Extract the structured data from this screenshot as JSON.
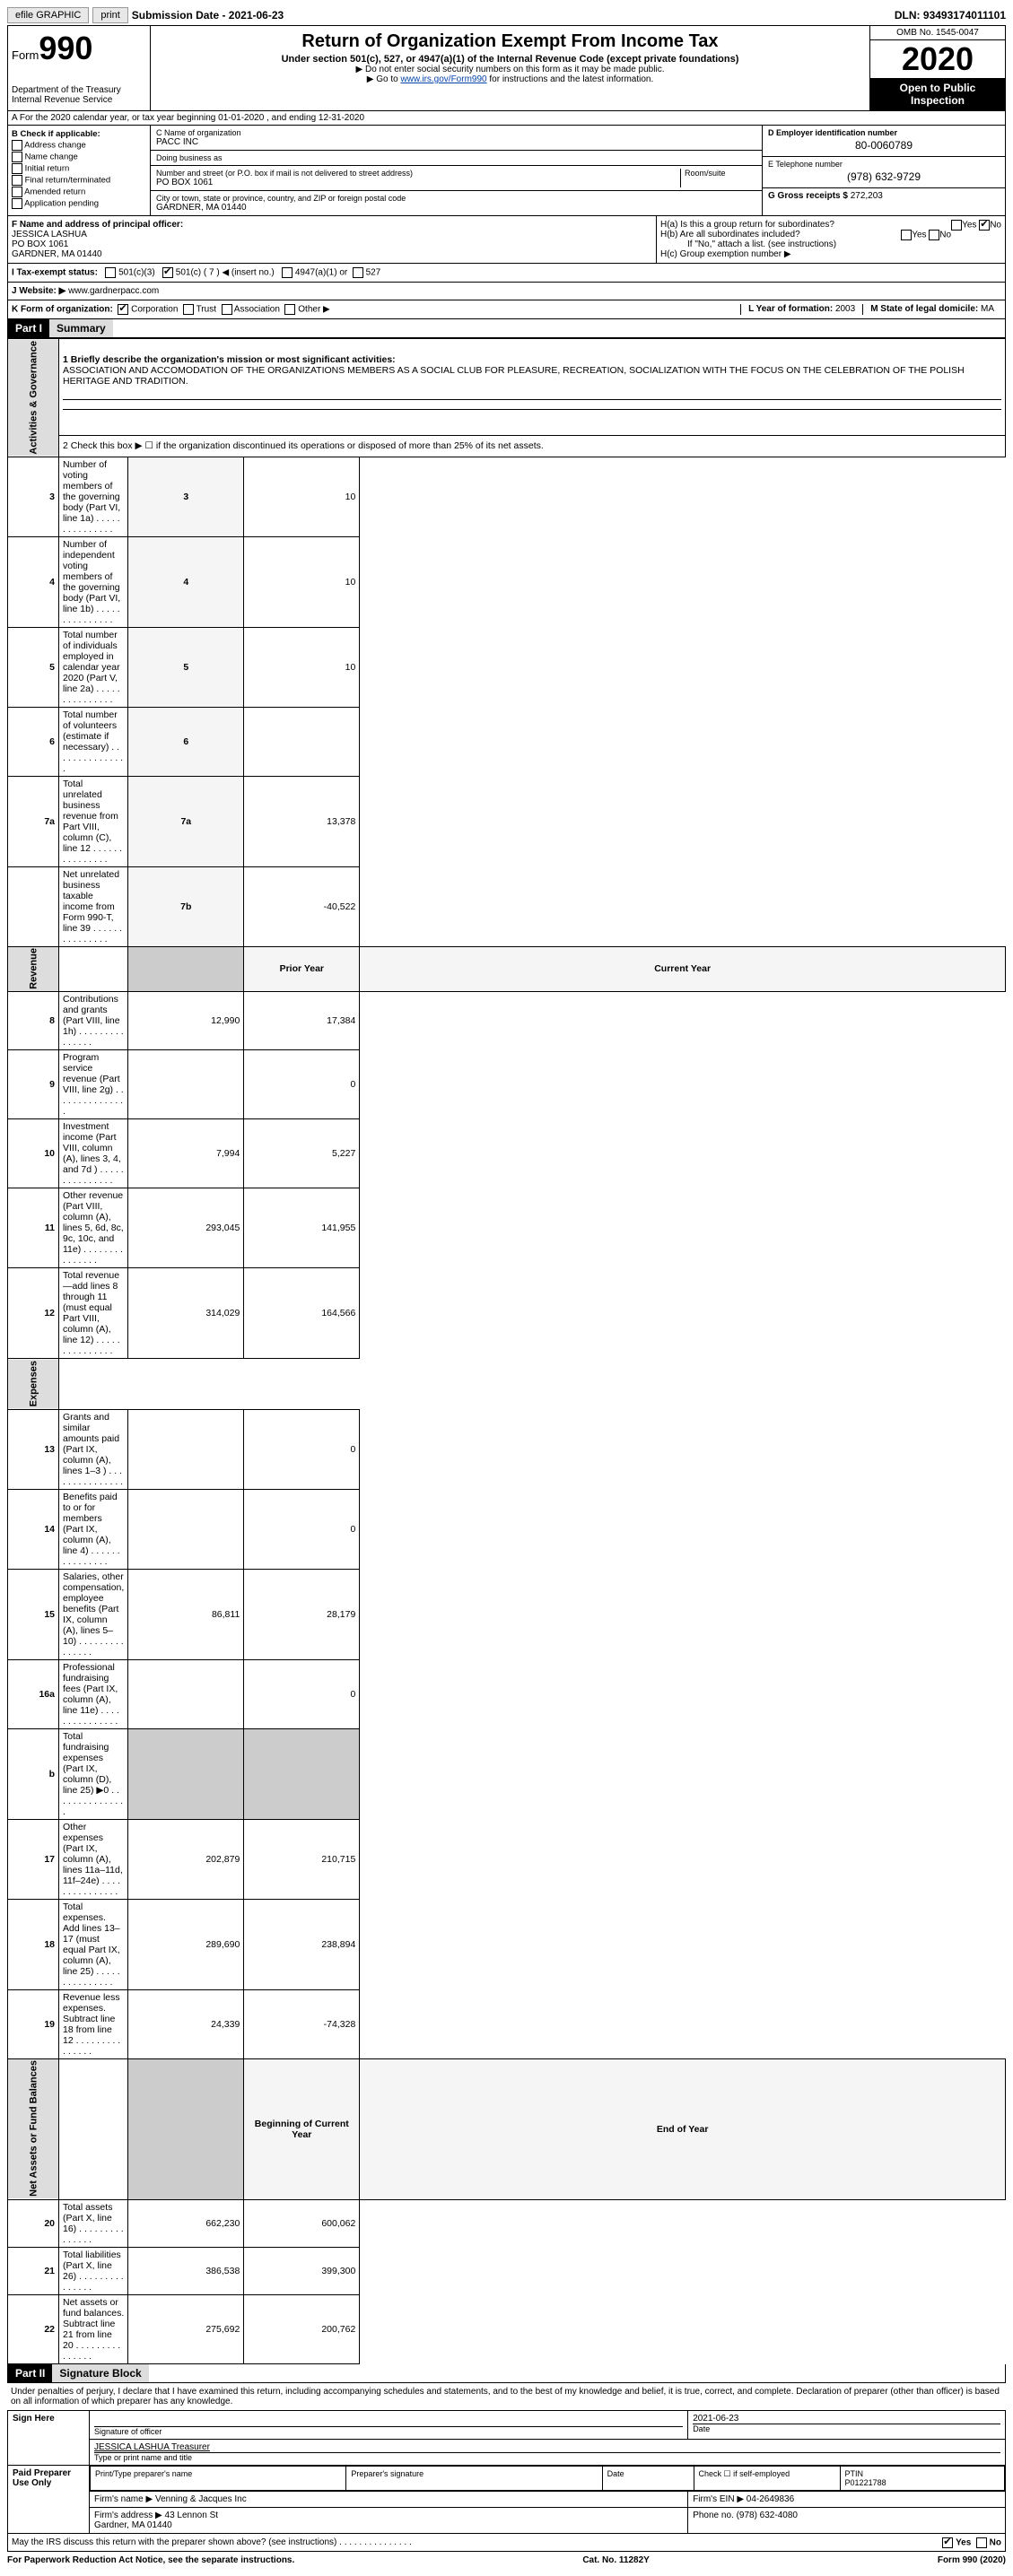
{
  "topbar": {
    "efile": "efile GRAPHIC",
    "print": "print",
    "submission_label": "Submission Date - ",
    "submission_date": "2021-06-23",
    "dln_label": "DLN: ",
    "dln": "93493174011101"
  },
  "header": {
    "form_label": "Form",
    "form_num": "990",
    "dept": "Department of the Treasury\nInternal Revenue Service",
    "title": "Return of Organization Exempt From Income Tax",
    "subtitle": "Under section 501(c), 527, or 4947(a)(1) of the Internal Revenue Code (except private foundations)",
    "note1": "▶ Do not enter social security numbers on this form as it may be made public.",
    "note2_pre": "▶ Go to ",
    "note2_link": "www.irs.gov/Form990",
    "note2_post": " for instructions and the latest information.",
    "omb": "OMB No. 1545-0047",
    "year": "2020",
    "open": "Open to Public Inspection"
  },
  "line_a": "A For the 2020 calendar year, or tax year beginning 01-01-2020   , and ending 12-31-2020",
  "box_b": {
    "label": "B Check if applicable:",
    "items": [
      "Address change",
      "Name change",
      "Initial return",
      "Final return/terminated",
      "Amended return",
      "Application pending"
    ]
  },
  "box_c": {
    "name_label": "C Name of organization",
    "name": "PACC INC",
    "dba_label": "Doing business as",
    "dba": "",
    "street_label": "Number and street (or P.O. box if mail is not delivered to street address)",
    "room_label": "Room/suite",
    "street": "PO BOX 1061",
    "city_label": "City or town, state or province, country, and ZIP or foreign postal code",
    "city": "GARDNER, MA  01440"
  },
  "box_d": {
    "label": "D Employer identification number",
    "val": "80-0060789"
  },
  "box_e": {
    "label": "E Telephone number",
    "val": "(978) 632-9729"
  },
  "box_g": {
    "label": "G Gross receipts $ ",
    "val": "272,203"
  },
  "box_f": {
    "label": "F Name and address of principal officer:",
    "name": "JESSICA LASHUA",
    "addr1": "PO BOX 1061",
    "addr2": "GARDNER, MA  01440"
  },
  "box_h": {
    "ha": "H(a)  Is this a group return for subordinates?",
    "ha_yes": "Yes",
    "ha_no": "No",
    "hb": "H(b)  Are all subordinates included?",
    "hb_yes": "Yes",
    "hb_no": "No",
    "hb_note": "If \"No,\" attach a list. (see instructions)",
    "hc": "H(c)  Group exemption number ▶"
  },
  "line_i": {
    "label": "I  Tax-exempt status:",
    "c3": "501(c)(3)",
    "c": "501(c) ( 7 ) ◀ (insert no.)",
    "a1": "4947(a)(1) or",
    "527": "527"
  },
  "line_j": {
    "label": "J  Website: ▶ ",
    "val": "www.gardnerpacc.com"
  },
  "line_k": {
    "label": "K Form of organization:",
    "corp": "Corporation",
    "trust": "Trust",
    "assoc": "Association",
    "other": "Other ▶"
  },
  "line_lm": {
    "l_label": "L Year of formation: ",
    "l_val": "2003",
    "m_label": "M State of legal domicile: ",
    "m_val": "MA"
  },
  "part1": {
    "header": "Part I",
    "title": "Summary",
    "sidebar1": "Activities & Governance",
    "sidebar2": "Revenue",
    "sidebar3": "Expenses",
    "sidebar4": "Net Assets or Fund Balances",
    "line1_label": "1  Briefly describe the organization's mission or most significant activities:",
    "line1_text": "ASSOCIATION AND ACCOMODATION OF THE ORGANIZATIONS MEMBERS AS A SOCIAL CLUB FOR PLEASURE, RECREATION, SOCIALIZATION WITH THE FOCUS ON THE CELEBRATION OF THE POLISH HERITAGE AND TRADITION.",
    "line2": "2    Check this box ▶ ☐  if the organization discontinued its operations or disposed of more than 25% of its net assets.",
    "rows_gov": [
      {
        "n": "3",
        "text": "Number of voting members of the governing body (Part VI, line 1a)",
        "box": "3",
        "val": "10"
      },
      {
        "n": "4",
        "text": "Number of independent voting members of the governing body (Part VI, line 1b)",
        "box": "4",
        "val": "10"
      },
      {
        "n": "5",
        "text": "Total number of individuals employed in calendar year 2020 (Part V, line 2a)",
        "box": "5",
        "val": "10"
      },
      {
        "n": "6",
        "text": "Total number of volunteers (estimate if necessary)",
        "box": "6",
        "val": ""
      },
      {
        "n": "7a",
        "text": "Total unrelated business revenue from Part VIII, column (C), line 12",
        "box": "7a",
        "val": "13,378"
      },
      {
        "n": "",
        "text": "Net unrelated business taxable income from Form 990-T, line 39",
        "box": "7b",
        "val": "-40,522"
      }
    ],
    "col_prior": "Prior Year",
    "col_current": "Current Year",
    "rows_rev": [
      {
        "n": "8",
        "text": "Contributions and grants (Part VIII, line 1h)",
        "prior": "12,990",
        "cur": "17,384"
      },
      {
        "n": "9",
        "text": "Program service revenue (Part VIII, line 2g)",
        "prior": "",
        "cur": "0"
      },
      {
        "n": "10",
        "text": "Investment income (Part VIII, column (A), lines 3, 4, and 7d )",
        "prior": "7,994",
        "cur": "5,227"
      },
      {
        "n": "11",
        "text": "Other revenue (Part VIII, column (A), lines 5, 6d, 8c, 9c, 10c, and 11e)",
        "prior": "293,045",
        "cur": "141,955"
      },
      {
        "n": "12",
        "text": "Total revenue—add lines 8 through 11 (must equal Part VIII, column (A), line 12)",
        "prior": "314,029",
        "cur": "164,566"
      }
    ],
    "rows_exp": [
      {
        "n": "13",
        "text": "Grants and similar amounts paid (Part IX, column (A), lines 1–3 )",
        "prior": "",
        "cur": "0"
      },
      {
        "n": "14",
        "text": "Benefits paid to or for members (Part IX, column (A), line 4)",
        "prior": "",
        "cur": "0"
      },
      {
        "n": "15",
        "text": "Salaries, other compensation, employee benefits (Part IX, column (A), lines 5–10)",
        "prior": "86,811",
        "cur": "28,179"
      },
      {
        "n": "16a",
        "text": "Professional fundraising fees (Part IX, column (A), line 11e)",
        "prior": "",
        "cur": "0"
      },
      {
        "n": "b",
        "text": "Total fundraising expenses (Part IX, column (D), line 25) ▶0",
        "prior": "SHADE",
        "cur": "SHADE"
      },
      {
        "n": "17",
        "text": "Other expenses (Part IX, column (A), lines 11a–11d, 11f–24e)",
        "prior": "202,879",
        "cur": "210,715"
      },
      {
        "n": "18",
        "text": "Total expenses. Add lines 13–17 (must equal Part IX, column (A), line 25)",
        "prior": "289,690",
        "cur": "238,894"
      },
      {
        "n": "19",
        "text": "Revenue less expenses. Subtract line 18 from line 12",
        "prior": "24,339",
        "cur": "-74,328"
      }
    ],
    "col_begin": "Beginning of Current Year",
    "col_end": "End of Year",
    "rows_net": [
      {
        "n": "20",
        "text": "Total assets (Part X, line 16)",
        "prior": "662,230",
        "cur": "600,062"
      },
      {
        "n": "21",
        "text": "Total liabilities (Part X, line 26)",
        "prior": "386,538",
        "cur": "399,300"
      },
      {
        "n": "22",
        "text": "Net assets or fund balances. Subtract line 21 from line 20",
        "prior": "275,692",
        "cur": "200,762"
      }
    ]
  },
  "part2": {
    "header": "Part II",
    "title": "Signature Block",
    "jurat": "Under penalties of perjury, I declare that I have examined this return, including accompanying schedules and statements, and to the best of my knowledge and belief, it is true, correct, and complete. Declaration of preparer (other than officer) is based on all information of which preparer has any knowledge.",
    "sign_here": "Sign Here",
    "sig_officer": "Signature of officer",
    "sig_date_label": "Date",
    "sig_date": "2021-06-23",
    "officer_name": "JESSICA LASHUA Treasurer",
    "type_label": "Type or print name and title",
    "paid": "Paid Preparer Use Only",
    "prep_name_label": "Print/Type preparer's name",
    "prep_sig_label": "Preparer's signature",
    "date_label": "Date",
    "check_self": "Check ☐ if self-employed",
    "ptin_label": "PTIN",
    "ptin": "P01221788",
    "firm_name_label": "Firm's name    ▶ ",
    "firm_name": "Venning & Jacques Inc",
    "firm_ein_label": "Firm's EIN ▶ ",
    "firm_ein": "04-2649836",
    "firm_addr_label": "Firm's address ▶ ",
    "firm_addr": "43 Lennon St\nGardner, MA  01440",
    "phone_label": "Phone no. ",
    "phone": "(978) 632-4080",
    "may_irs": "May the IRS discuss this return with the preparer shown above? (see instructions)",
    "yes": "Yes",
    "no": "No"
  },
  "footer": {
    "left": "For Paperwork Reduction Act Notice, see the separate instructions.",
    "mid": "Cat. No. 11282Y",
    "right": "Form 990 (2020)"
  }
}
